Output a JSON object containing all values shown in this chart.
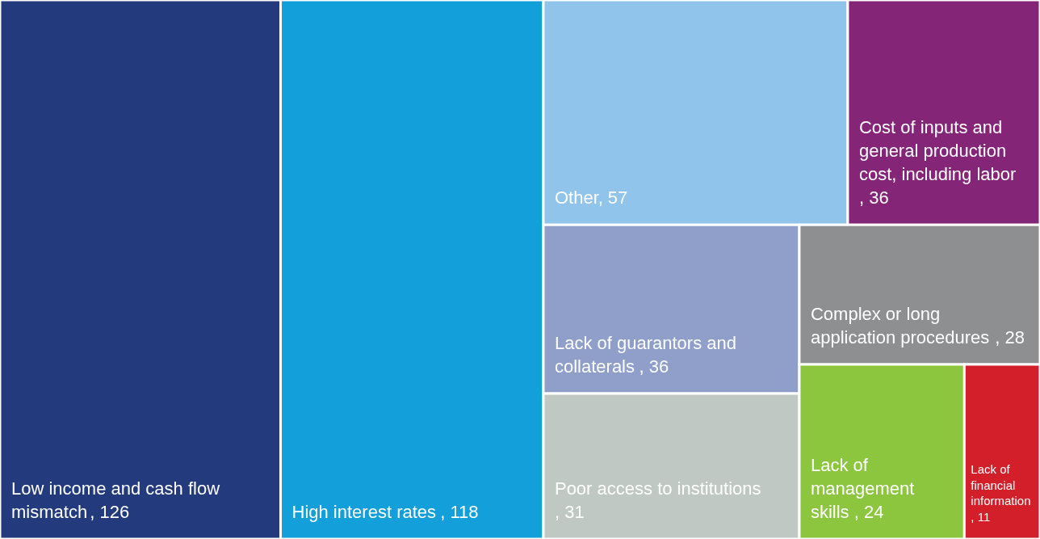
{
  "chart_data": {
    "type": "other",
    "categories": [
      "Low income and cash flow mismatch",
      "High interest rates",
      "Other",
      "Cost of inputs and general production cost, including labor",
      "Lack of guarantors and collaterals",
      "Poor access to institutions",
      "Complex or long application procedures",
      "Lack of management skills",
      "Lack of financial information"
    ],
    "value_labels": [
      ", 126",
      ", 118",
      ", 57",
      ", 36",
      ", 36",
      ", 31",
      ", 28",
      ", 24",
      ", 11"
    ],
    "values": [
      126,
      118,
      57,
      36,
      36,
      31,
      28,
      24,
      11
    ],
    "colors": [
      "#233a7c",
      "#13a0da",
      "#90c4ea",
      "#842577",
      "#8f9fc9",
      "#c0c8c4",
      "#8e8f91",
      "#8cc63f",
      "#d21f2a"
    ]
  }
}
